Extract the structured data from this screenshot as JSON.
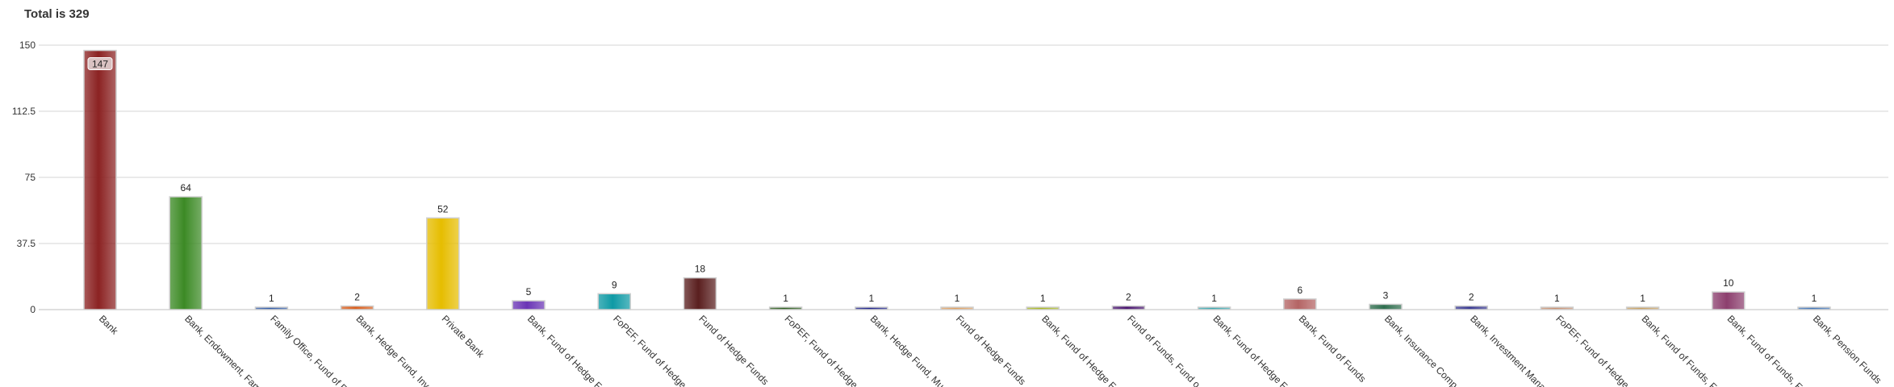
{
  "chart_data": {
    "type": "bar",
    "title": "Total is 329",
    "xlabel": "",
    "ylabel": "",
    "ylim": [
      0,
      150
    ],
    "yticks": [
      "0",
      "37.5",
      "75",
      "112.5",
      "150"
    ],
    "grid": true,
    "categories": [
      "Bank",
      "Bank, Endowment, Fam",
      "Family Office, Fund of F",
      "Bank, Hedge Fund, Inv",
      "Private Bank",
      "Bank, Fund of Hedge F",
      "FoPEF, Fund of Hedge",
      "Fund of Hedge Funds",
      "FoPEF, Fund of Hedge",
      "Bank, Hedge Fund, Mu",
      "Fund of Hedge Funds",
      "Bank, Fund of Hedge F",
      "Fund of Funds, Fund o",
      "Bank, Fund of Hedge F",
      "Bank, Fund of Funds",
      "Bank, Insurance Comp",
      "Bank, Investment Mana",
      "FoPEF, Fund of Hedge",
      "Bank, Fund of Funds, F",
      "Bank, Fund of Funds, F",
      "Bank, Pension Funds"
    ],
    "values": [
      147,
      64,
      1,
      2,
      52,
      5,
      9,
      18,
      1,
      1,
      1,
      1,
      2,
      1,
      6,
      3,
      2,
      1,
      1,
      10,
      1
    ],
    "colors": [
      "#8b2222",
      "#3c8a25",
      "#2f5aa8",
      "#d95f1e",
      "#e6bd00",
      "#6a35b5",
      "#0f9aa5",
      "#5a1f1f",
      "#2a5c1c",
      "#1b1f8a",
      "#e0a060",
      "#a8b820",
      "#4a1670",
      "#3aa8b0",
      "#b46464",
      "#2f6e4e",
      "#3a3a92",
      "#c89070",
      "#c8a060",
      "#8c3f6e",
      "#3f74b8"
    ]
  }
}
